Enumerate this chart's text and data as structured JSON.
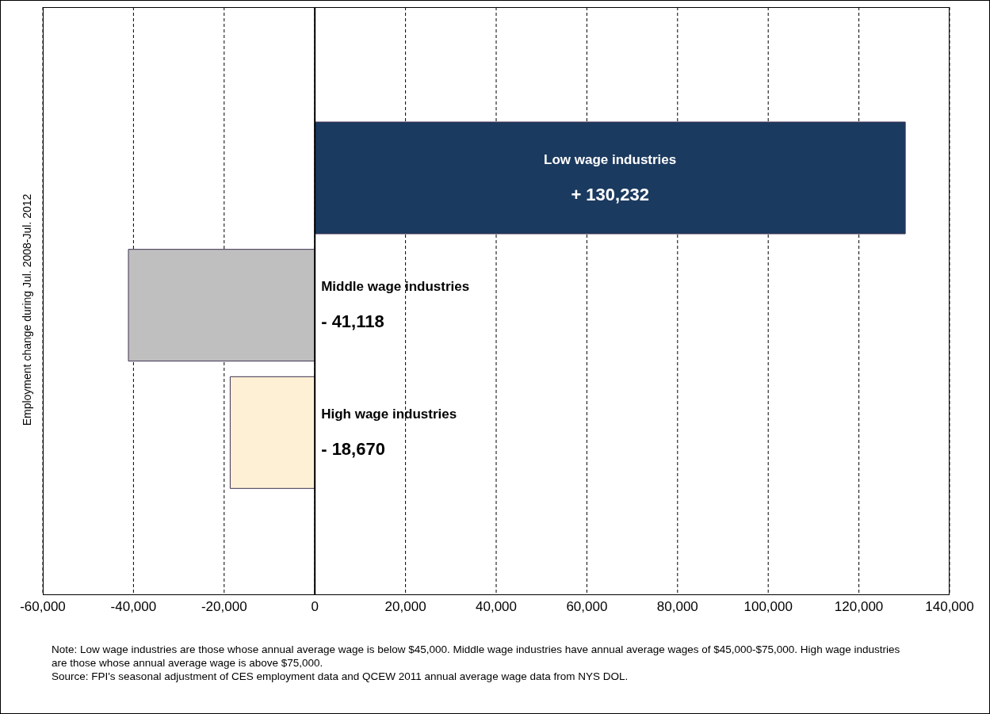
{
  "chart_data": {
    "type": "bar",
    "orientation": "horizontal",
    "ylabel": "Employment change during Jul. 2008-Jul.  2012",
    "categories": [
      "Low wage industries",
      "Middle wage industries",
      "High wage industries"
    ],
    "values": [
      130232,
      -41118,
      -18670
    ],
    "value_labels": [
      "+ 130,232",
      "- 41,118",
      "- 18,670"
    ],
    "colors": [
      "#1b3a60",
      "#bfbfbf",
      "#fdf0d5"
    ],
    "xlim": [
      -60000,
      140000
    ],
    "xticks": [
      {
        "value": -60000,
        "label": "-60,000"
      },
      {
        "value": -40000,
        "label": "-40,000"
      },
      {
        "value": -20000,
        "label": "-20,000"
      },
      0,
      {
        "value": 20000,
        "label": "20,000"
      },
      {
        "value": 40000,
        "label": "40,000"
      },
      {
        "value": 60000,
        "label": "60,000"
      },
      {
        "value": 80000,
        "label": "80,000"
      },
      {
        "value": 100000,
        "label": "100,000"
      },
      {
        "value": 120000,
        "label": "120,000"
      },
      {
        "value": 140000,
        "label": "140,000"
      }
    ],
    "grid": "x",
    "tick_labels": "x",
    "annotations": [
      "Note: Low wage industries are those whose annual average wage is below $45,000. Middle wage industries have annual average wages of $45,000-$75,000. High wage industries are those whose annual average wage is above $75,000.",
      "Source: FPI's seasonal adjustment of CES employment data and QCEW 2011 annual average wage data from NYS DOL."
    ]
  }
}
